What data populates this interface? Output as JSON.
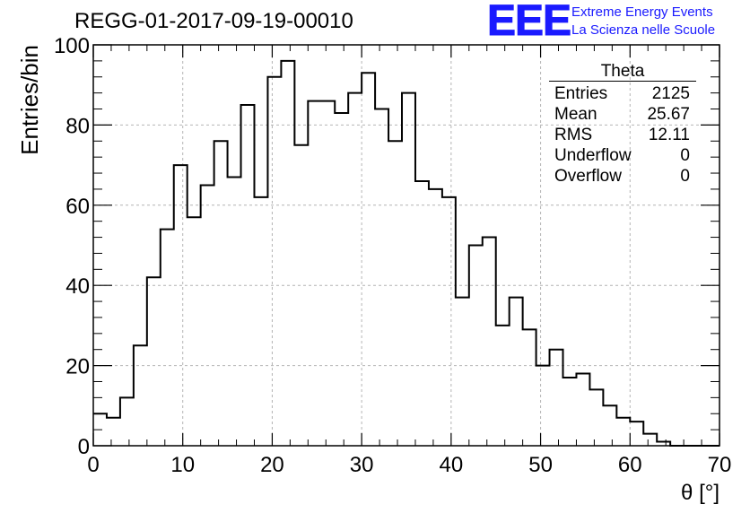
{
  "header": {
    "run_title": "REGG-01-2017-09-19-00010",
    "logo_mark": "EEE",
    "logo_line1": "Extreme Energy Events",
    "logo_line2": "La Scienza nelle Scuole"
  },
  "stats": {
    "name": "Theta",
    "rows": [
      {
        "label": "Entries",
        "value": "2125"
      },
      {
        "label": "Mean",
        "value": "25.67"
      },
      {
        "label": "RMS",
        "value": "12.11"
      },
      {
        "label": "Underflow",
        "value": "0"
      },
      {
        "label": "Overflow",
        "value": "0"
      }
    ]
  },
  "colors": {
    "accent": "#1a1aff",
    "line": "#000000",
    "grid": "#b4b4b4"
  },
  "chart_data": {
    "type": "histogram",
    "title": "REGG-01-2017-09-19-00010",
    "xlabel": "θ [°]",
    "ylabel": "Entries/bin",
    "xlim": [
      0,
      70
    ],
    "ylim": [
      0,
      100
    ],
    "bin_width": 1.5,
    "bin_start": 0,
    "x_ticks": [
      0,
      10,
      20,
      30,
      40,
      50,
      60,
      70
    ],
    "y_ticks": [
      0,
      20,
      40,
      60,
      80,
      100
    ],
    "grid": true,
    "values": [
      8,
      7,
      12,
      25,
      42,
      54,
      70,
      57,
      65,
      76,
      67,
      85,
      62,
      92,
      96,
      75,
      86,
      86,
      83,
      88,
      93,
      84,
      76,
      88,
      66,
      64,
      62,
      37,
      50,
      52,
      30,
      37,
      29,
      20,
      24,
      17,
      18,
      14,
      10,
      7,
      6,
      3,
      1,
      0,
      0,
      0,
      0
    ]
  }
}
